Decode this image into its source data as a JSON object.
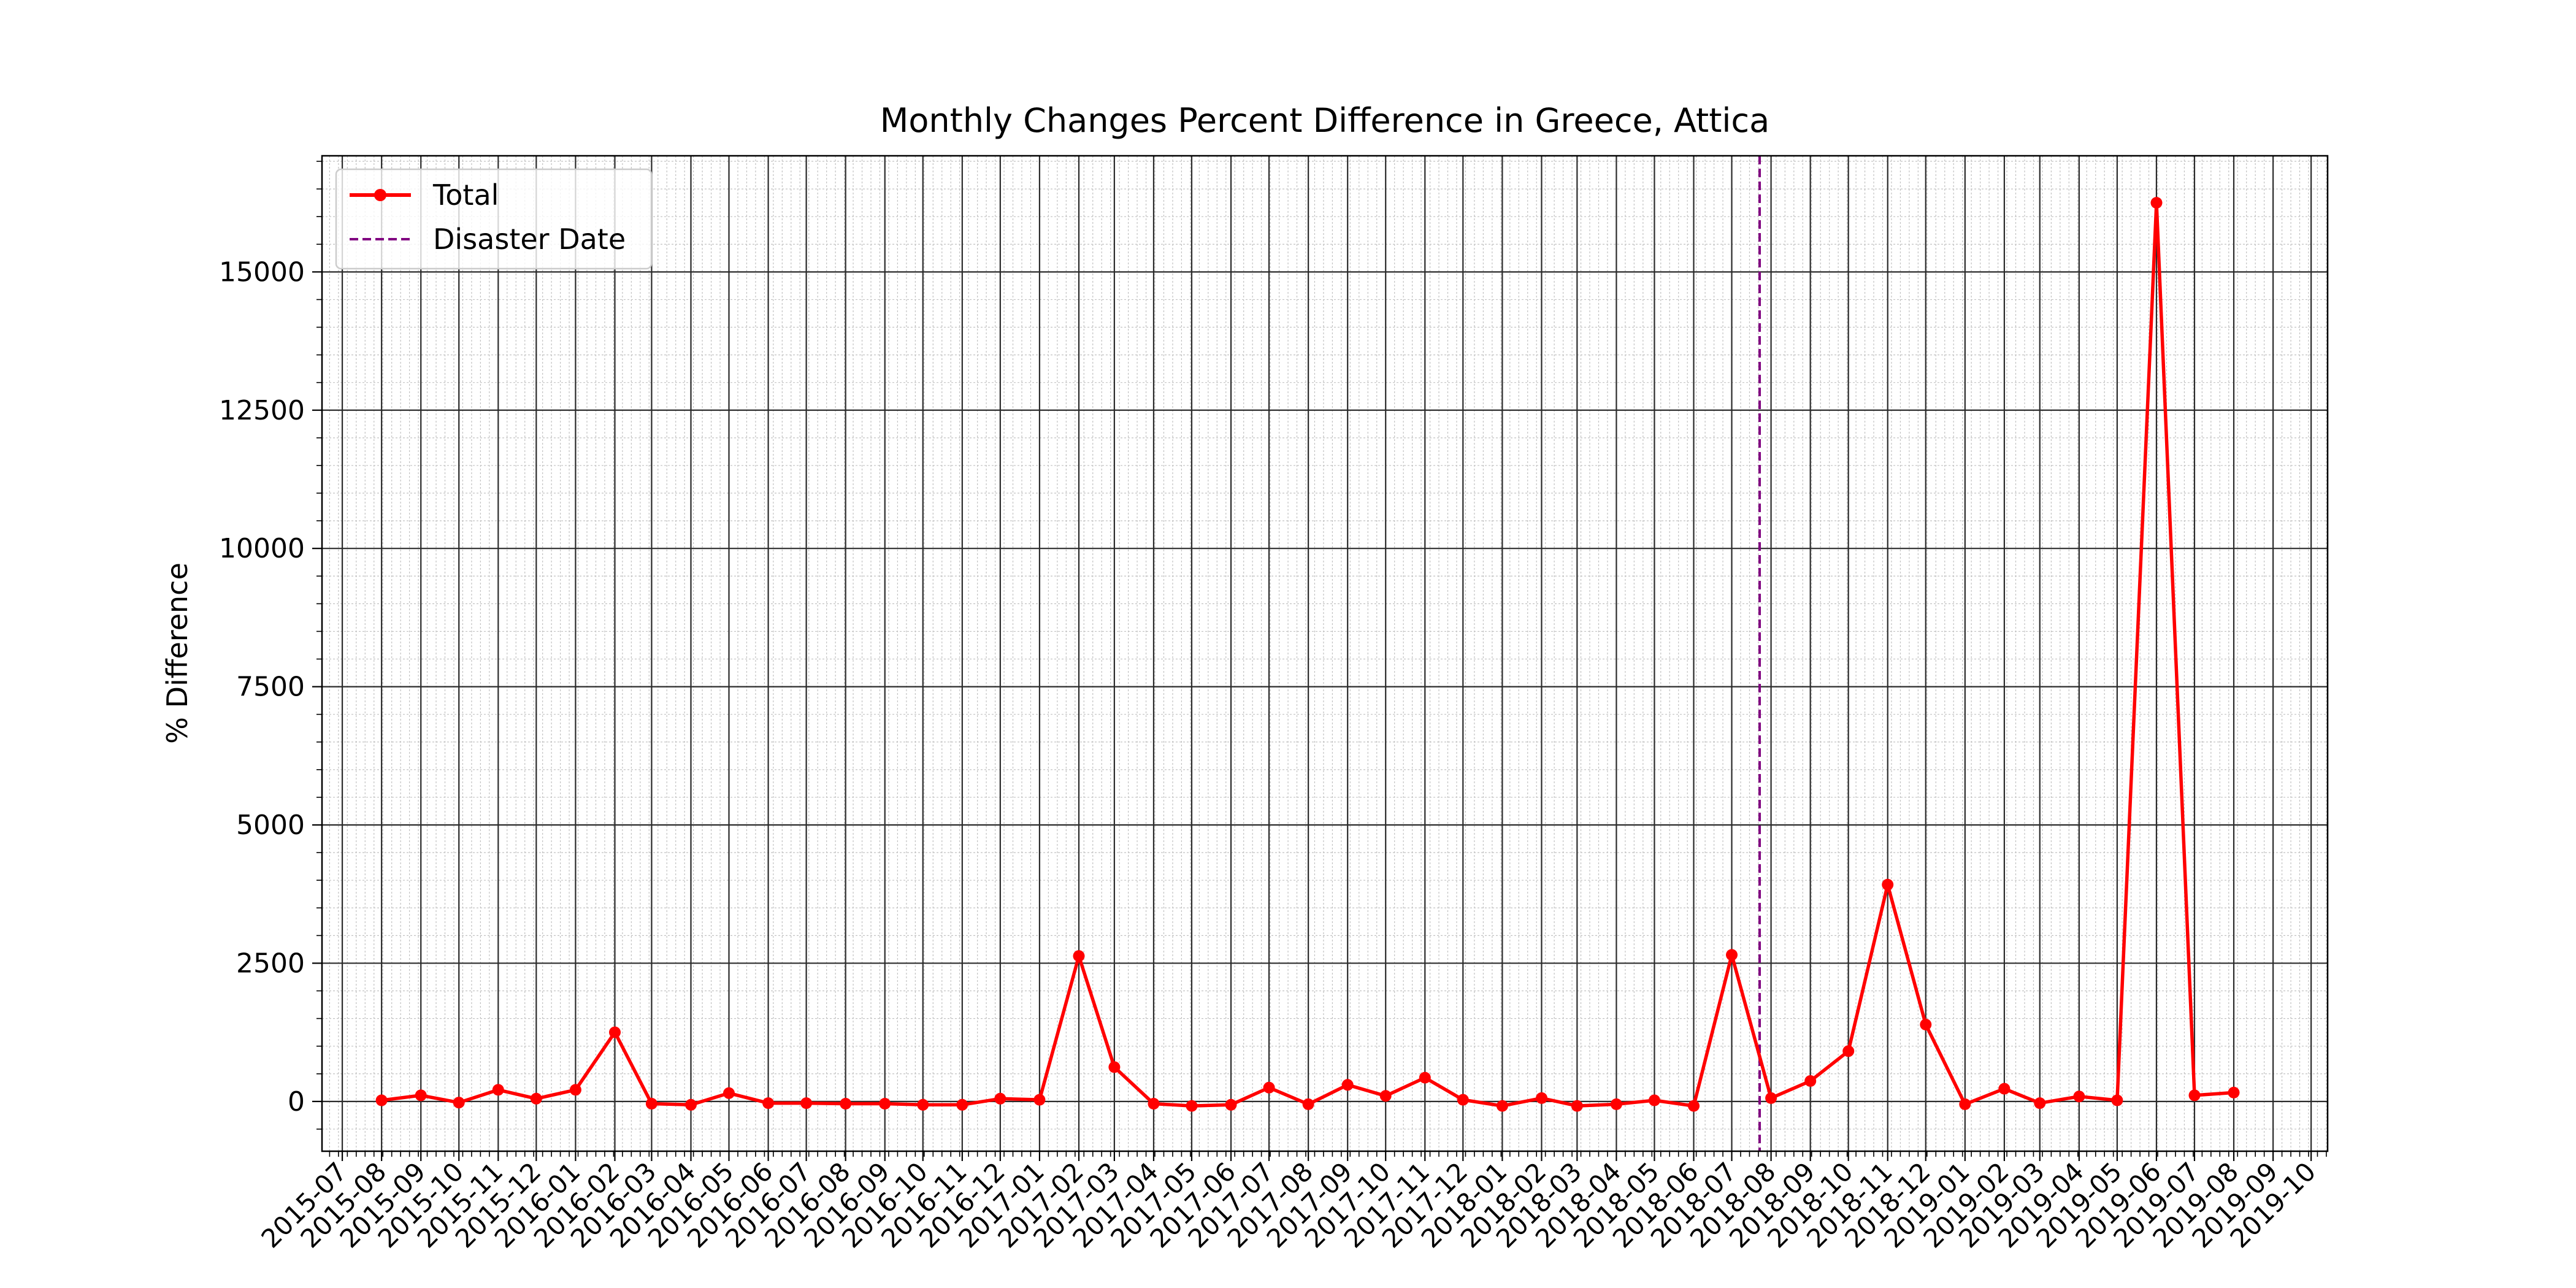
{
  "chart_data": {
    "type": "line",
    "title": "Monthly Changes Percent Difference in Greece, Attica",
    "xlabel": "",
    "ylabel": "% Difference",
    "xlim": [
      "2015-06-15",
      "2019-10-14"
    ],
    "ylim": [
      -900,
      17100
    ],
    "x_ticks": [
      "2015-07",
      "2015-08",
      "2015-09",
      "2015-10",
      "2015-11",
      "2015-12",
      "2016-01",
      "2016-02",
      "2016-03",
      "2016-04",
      "2016-05",
      "2016-06",
      "2016-07",
      "2016-08",
      "2016-09",
      "2016-10",
      "2016-11",
      "2016-12",
      "2017-01",
      "2017-02",
      "2017-03",
      "2017-04",
      "2017-05",
      "2017-06",
      "2017-07",
      "2017-08",
      "2017-09",
      "2017-10",
      "2017-11",
      "2017-12",
      "2018-01",
      "2018-02",
      "2018-03",
      "2018-04",
      "2018-05",
      "2018-06",
      "2018-07",
      "2018-08",
      "2018-09",
      "2018-10",
      "2018-11",
      "2018-12",
      "2019-01",
      "2019-02",
      "2019-03",
      "2019-04",
      "2019-05",
      "2019-06",
      "2019-07",
      "2019-08",
      "2019-09",
      "2019-10"
    ],
    "y_ticks": [
      0,
      2500,
      5000,
      7500,
      10000,
      12500,
      15000
    ],
    "grid": "major and minor",
    "legend": {
      "position": "top-left",
      "entries": [
        "Total",
        "Disaster Date"
      ]
    },
    "series": [
      {
        "name": "Total",
        "color": "#ff0000",
        "marker": "circle",
        "points": [
          [
            "2015-08-01",
            20
          ],
          [
            "2015-09-01",
            110
          ],
          [
            "2015-10-01",
            -20
          ],
          [
            "2015-11-01",
            210
          ],
          [
            "2015-12-01",
            50
          ],
          [
            "2016-01-01",
            210
          ],
          [
            "2016-02-01",
            1250
          ],
          [
            "2016-03-01",
            -40
          ],
          [
            "2016-04-01",
            -60
          ],
          [
            "2016-05-01",
            150
          ],
          [
            "2016-06-01",
            -30
          ],
          [
            "2016-07-01",
            -30
          ],
          [
            "2016-08-01",
            -40
          ],
          [
            "2016-09-01",
            -40
          ],
          [
            "2016-10-01",
            -60
          ],
          [
            "2016-11-01",
            -60
          ],
          [
            "2016-12-01",
            50
          ],
          [
            "2017-01-01",
            30
          ],
          [
            "2017-02-01",
            2630
          ],
          [
            "2017-03-01",
            620
          ],
          [
            "2017-04-01",
            -40
          ],
          [
            "2017-05-01",
            -80
          ],
          [
            "2017-06-01",
            -60
          ],
          [
            "2017-07-01",
            250
          ],
          [
            "2017-08-01",
            -50
          ],
          [
            "2017-09-01",
            300
          ],
          [
            "2017-10-01",
            100
          ],
          [
            "2017-11-01",
            430
          ],
          [
            "2017-12-01",
            30
          ],
          [
            "2018-01-01",
            -80
          ],
          [
            "2018-02-01",
            60
          ],
          [
            "2018-03-01",
            -80
          ],
          [
            "2018-04-01",
            -50
          ],
          [
            "2018-05-01",
            20
          ],
          [
            "2018-06-01",
            -80
          ],
          [
            "2018-07-01",
            2650
          ],
          [
            "2018-08-01",
            60
          ],
          [
            "2018-09-01",
            370
          ],
          [
            "2018-10-01",
            910
          ],
          [
            "2018-11-01",
            3920
          ],
          [
            "2018-12-01",
            1390
          ],
          [
            "2019-01-01",
            -50
          ],
          [
            "2019-02-01",
            230
          ],
          [
            "2019-03-01",
            -30
          ],
          [
            "2019-04-01",
            90
          ],
          [
            "2019-05-01",
            20
          ],
          [
            "2019-06-01",
            16250
          ],
          [
            "2019-07-01",
            110
          ],
          [
            "2019-08-01",
            160
          ]
        ]
      }
    ],
    "vlines": [
      {
        "name": "Disaster Date",
        "x": "2018-07-23",
        "color": "#800080",
        "style": "dashed"
      }
    ]
  }
}
